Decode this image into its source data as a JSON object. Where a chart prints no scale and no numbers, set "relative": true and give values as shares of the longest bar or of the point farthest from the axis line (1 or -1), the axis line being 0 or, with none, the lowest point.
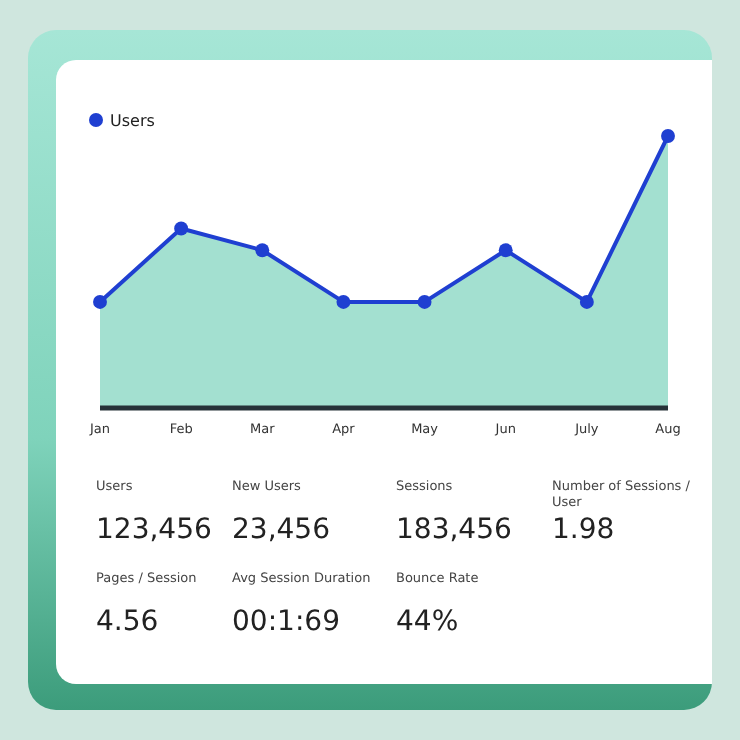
{
  "chart_data": [
    {
      "type": "area",
      "categories": [
        "Jan",
        "Feb",
        "Mar",
        "Apr",
        "May",
        "Jun",
        "July",
        "Aug"
      ],
      "relative": true,
      "legend": "top left",
      "marker": "circle",
      "series": [
        {
          "name": "Users",
          "color": "#1f3fd1",
          "values": [
            0.39,
            0.66,
            0.58,
            0.39,
            0.39,
            0.58,
            0.39,
            1
          ]
        }
      ]
    },
    {
      "type": "other",
      "categories": [
        "Users",
        "New Users",
        "Sessions",
        "Number of Sessions / User",
        "Pages / Session",
        "Avg Session Duration",
        "Bounce Rate"
      ],
      "value_labels": [
        "123,456",
        "23,456",
        "183,456",
        "1.98",
        "4.56",
        "00:1:69",
        "44%"
      ]
    }
  ]
}
